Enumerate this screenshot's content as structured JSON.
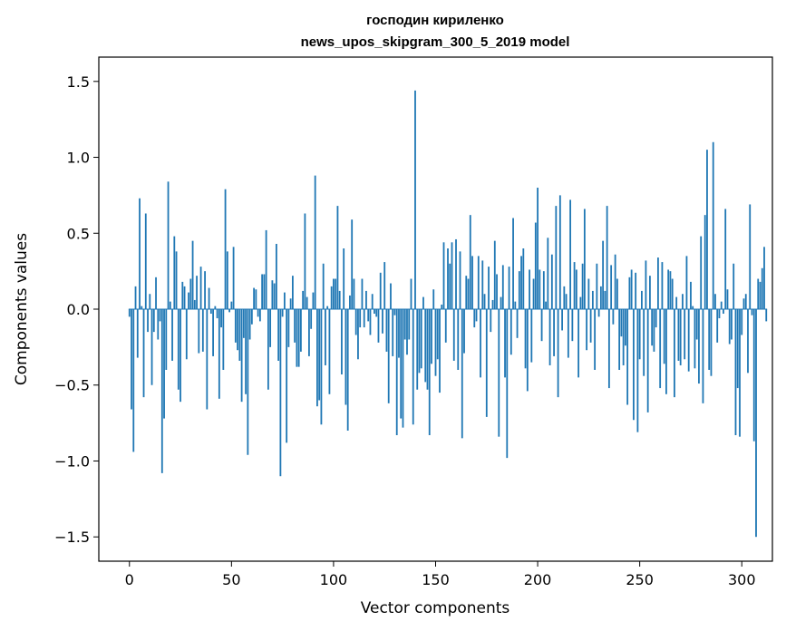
{
  "chart_data": {
    "type": "bar",
    "title": "господин кириленко",
    "subtitle": "news_upos_skipgram_300_5_2019 model",
    "xlabel": "Vector components",
    "ylabel": "Components values",
    "xlim": [
      -15,
      315
    ],
    "ylim": [
      -1.66,
      1.66
    ],
    "xticks": [
      0,
      50,
      100,
      150,
      200,
      250,
      300
    ],
    "yticks": [
      -1.5,
      -1.0,
      -0.5,
      0.0,
      0.5,
      1.0,
      1.5
    ],
    "ytick_labels": [
      "−1.5",
      "−1.0",
      "−0.5",
      "0.0",
      "0.5",
      "1.0",
      "1.5"
    ],
    "xtick_labels": [
      "0",
      "50",
      "100",
      "150",
      "200",
      "250",
      "300"
    ],
    "bar_color": "#1f77b4",
    "grid": false,
    "values": [
      -0.05,
      -0.66,
      -0.94,
      0.15,
      -0.32,
      0.73,
      0.02,
      -0.58,
      0.63,
      -0.15,
      0.1,
      -0.5,
      -0.15,
      0.21,
      -0.2,
      -0.08,
      -1.08,
      -0.72,
      -0.4,
      0.84,
      0.05,
      -0.34,
      0.48,
      0.38,
      -0.53,
      -0.61,
      0.18,
      0.15,
      -0.33,
      0.11,
      0.2,
      0.45,
      0.06,
      0.22,
      -0.29,
      0.28,
      -0.28,
      0.25,
      -0.66,
      0.14,
      -0.03,
      -0.31,
      0.02,
      -0.06,
      -0.59,
      -0.12,
      -0.4,
      0.79,
      0.38,
      -0.02,
      0.05,
      0.41,
      -0.22,
      -0.27,
      -0.34,
      -0.61,
      -0.19,
      -0.56,
      -0.96,
      -0.2,
      -0.1,
      0.14,
      0.13,
      -0.05,
      -0.08,
      0.23,
      0.23,
      0.52,
      -0.53,
      -0.25,
      0.19,
      0.17,
      0.43,
      -0.34,
      -1.1,
      -0.05,
      0.11,
      -0.88,
      -0.25,
      0.07,
      0.22,
      -0.22,
      -0.38,
      -0.38,
      -0.28,
      0.12,
      0.63,
      0.08,
      -0.31,
      -0.13,
      0.11,
      0.88,
      -0.64,
      -0.6,
      -0.76,
      0.3,
      -0.37,
      0.02,
      -0.56,
      0.15,
      0.2,
      0.2,
      0.68,
      0.12,
      -0.43,
      0.4,
      -0.63,
      -0.8,
      0.09,
      0.59,
      0.2,
      -0.17,
      -0.33,
      -0.12,
      0.2,
      -0.12,
      0.12,
      -0.08,
      -0.17,
      0.1,
      -0.03,
      -0.05,
      -0.22,
      0.24,
      -0.16,
      0.31,
      -0.28,
      -0.62,
      0.17,
      -0.31,
      -0.04,
      -0.83,
      -0.32,
      -0.72,
      -0.78,
      -0.2,
      -0.3,
      -0.2,
      0.2,
      -0.76,
      1.44,
      -0.53,
      -0.42,
      -0.39,
      0.08,
      -0.48,
      -0.53,
      -0.83,
      -0.36,
      0.13,
      -0.44,
      -0.33,
      -0.55,
      0.03,
      0.44,
      -0.22,
      0.4,
      0.3,
      0.44,
      -0.34,
      0.46,
      -0.4,
      0.38,
      -0.85,
      -0.29,
      0.22,
      0.2,
      0.62,
      0.35,
      -0.12,
      -0.08,
      0.35,
      -0.45,
      0.32,
      0.1,
      -0.71,
      0.28,
      -0.15,
      0.06,
      0.45,
      0.23,
      -0.84,
      0.08,
      0.29,
      -0.45,
      -0.98,
      0.28,
      -0.3,
      0.6,
      0.05,
      -0.19,
      0.25,
      0.35,
      0.4,
      -0.39,
      -0.54,
      0.26,
      -0.35,
      0.2,
      0.57,
      0.8,
      0.26,
      -0.21,
      0.25,
      0.05,
      0.47,
      -0.37,
      0.36,
      -0.31,
      0.68,
      -0.58,
      0.75,
      -0.14,
      0.15,
      0.1,
      -0.32,
      0.72,
      -0.21,
      0.31,
      0.26,
      -0.45,
      0.08,
      0.3,
      0.66,
      -0.27,
      0.2,
      -0.22,
      0.12,
      -0.4,
      0.3,
      -0.05,
      0.15,
      0.45,
      0.12,
      0.68,
      -0.52,
      0.29,
      -0.1,
      0.36,
      0.2,
      -0.4,
      -0.18,
      -0.37,
      -0.24,
      -0.63,
      0.21,
      0.26,
      -0.73,
      0.24,
      -0.81,
      -0.33,
      0.12,
      -0.44,
      0.32,
      -0.68,
      0.22,
      -0.24,
      -0.28,
      -0.12,
      0.34,
      -0.52,
      0.31,
      -0.36,
      -0.56,
      0.26,
      0.25,
      0.2,
      -0.58,
      0.08,
      -0.34,
      -0.37,
      0.1,
      -0.33,
      0.35,
      -0.41,
      0.18,
      0.02,
      -0.39,
      -0.2,
      -0.49,
      0.48,
      -0.62,
      0.62,
      1.05,
      -0.4,
      -0.44,
      1.1,
      0.1,
      -0.22,
      -0.06,
      0.05,
      -0.03,
      0.66,
      0.13,
      -0.23,
      -0.2,
      0.3,
      -0.83,
      -0.52,
      -0.84,
      -0.17,
      0.07,
      0.1,
      -0.42,
      0.69,
      -0.04,
      -0.87,
      -1.5,
      0.2,
      0.18,
      0.27,
      0.41,
      -0.08
    ]
  }
}
